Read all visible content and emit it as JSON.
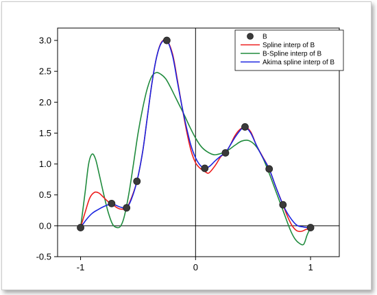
{
  "chart_data": {
    "type": "line",
    "title": "",
    "xlabel": "",
    "ylabel": "",
    "xlim": [
      -1.2,
      1.25
    ],
    "ylim": [
      -0.5,
      3.2
    ],
    "x_ticks": [
      -1,
      0,
      1
    ],
    "x_tick_labels": [
      "-1",
      "0",
      "1"
    ],
    "y_ticks": [
      -0.5,
      0.0,
      0.5,
      1.0,
      1.5,
      2.0,
      2.5,
      3.0
    ],
    "y_tick_labels": [
      "-0.5",
      "0.0",
      "0.5",
      "1.0",
      "1.5",
      "2.0",
      "2.5",
      "3.0"
    ],
    "grid": false,
    "zero_lines": true,
    "legend_position": "top-right",
    "series": [
      {
        "name": "B",
        "kind": "scatter",
        "color": "#3a3a3a",
        "x": [
          -1.0,
          -0.73,
          -0.6,
          -0.51,
          -0.25,
          0.08,
          0.26,
          0.43,
          0.64,
          0.76,
          1.0
        ],
        "y": [
          -0.03,
          0.36,
          0.29,
          0.72,
          3.0,
          0.93,
          1.18,
          1.6,
          0.92,
          0.34,
          -0.03
        ]
      },
      {
        "name": "Spline interp of B",
        "kind": "line",
        "color": "#ee1c1c",
        "x": [
          -1.0,
          -0.96,
          -0.92,
          -0.88,
          -0.84,
          -0.8,
          -0.76,
          -0.73,
          -0.69,
          -0.65,
          -0.6,
          -0.56,
          -0.51,
          -0.46,
          -0.42,
          -0.38,
          -0.34,
          -0.3,
          -0.25,
          -0.2,
          -0.16,
          -0.12,
          -0.08,
          -0.04,
          0.0,
          0.04,
          0.08,
          0.11,
          0.14,
          0.18,
          0.22,
          0.26,
          0.3,
          0.34,
          0.38,
          0.43,
          0.48,
          0.53,
          0.58,
          0.64,
          0.7,
          0.76,
          0.8,
          0.84,
          0.88,
          0.92,
          0.96,
          1.0
        ],
        "y": [
          -0.03,
          0.22,
          0.45,
          0.54,
          0.53,
          0.46,
          0.39,
          0.36,
          0.3,
          0.27,
          0.29,
          0.44,
          0.72,
          1.2,
          1.75,
          2.3,
          2.72,
          2.96,
          3.0,
          2.78,
          2.38,
          1.95,
          1.55,
          1.22,
          1.02,
          0.93,
          0.88,
          0.85,
          0.9,
          1.0,
          1.12,
          1.18,
          1.3,
          1.45,
          1.55,
          1.6,
          1.52,
          1.3,
          1.13,
          0.92,
          0.62,
          0.34,
          0.15,
          0.0,
          -0.08,
          -0.09,
          -0.06,
          -0.03
        ]
      },
      {
        "name": "B-Spline interp of B",
        "kind": "line",
        "color": "#1e8a3c",
        "x": [
          -1.0,
          -0.96,
          -0.93,
          -0.9,
          -0.87,
          -0.84,
          -0.8,
          -0.76,
          -0.72,
          -0.68,
          -0.65,
          -0.62,
          -0.58,
          -0.54,
          -0.5,
          -0.46,
          -0.42,
          -0.38,
          -0.34,
          -0.3,
          -0.26,
          -0.22,
          -0.18,
          -0.14,
          -0.1,
          -0.05,
          0.0,
          0.05,
          0.1,
          0.16,
          0.22,
          0.28,
          0.34,
          0.4,
          0.46,
          0.52,
          0.58,
          0.64,
          0.7,
          0.76,
          0.82,
          0.86,
          0.9,
          0.94,
          0.97,
          1.0
        ],
        "y": [
          -0.03,
          0.55,
          1.0,
          1.16,
          1.08,
          0.85,
          0.52,
          0.22,
          0.02,
          -0.03,
          0.0,
          0.15,
          0.52,
          1.0,
          1.5,
          1.9,
          2.22,
          2.42,
          2.48,
          2.45,
          2.38,
          2.25,
          2.1,
          1.95,
          1.8,
          1.6,
          1.42,
          1.28,
          1.2,
          1.15,
          1.17,
          1.22,
          1.3,
          1.37,
          1.38,
          1.3,
          1.12,
          0.85,
          0.55,
          0.25,
          -0.05,
          -0.2,
          -0.28,
          -0.3,
          -0.15,
          -0.03
        ]
      },
      {
        "name": "Akima spline interp of B",
        "kind": "line",
        "color": "#1a24e0",
        "x": [
          -1.0,
          -0.95,
          -0.9,
          -0.85,
          -0.8,
          -0.76,
          -0.73,
          -0.69,
          -0.65,
          -0.6,
          -0.56,
          -0.51,
          -0.46,
          -0.42,
          -0.38,
          -0.34,
          -0.3,
          -0.25,
          -0.2,
          -0.16,
          -0.12,
          -0.08,
          -0.04,
          0.0,
          0.04,
          0.08,
          0.12,
          0.17,
          0.22,
          0.26,
          0.3,
          0.35,
          0.4,
          0.43,
          0.48,
          0.53,
          0.58,
          0.64,
          0.7,
          0.76,
          0.82,
          0.88,
          0.94,
          1.0
        ],
        "y": [
          -0.03,
          0.1,
          0.2,
          0.26,
          0.31,
          0.34,
          0.36,
          0.33,
          0.3,
          0.29,
          0.42,
          0.72,
          1.2,
          1.75,
          2.3,
          2.72,
          2.95,
          3.0,
          2.75,
          2.35,
          1.95,
          1.6,
          1.3,
          1.1,
          0.98,
          0.93,
          0.96,
          1.05,
          1.13,
          1.18,
          1.3,
          1.45,
          1.57,
          1.6,
          1.5,
          1.3,
          1.12,
          0.92,
          0.62,
          0.34,
          0.14,
          0.01,
          -0.02,
          -0.03
        ]
      }
    ]
  }
}
